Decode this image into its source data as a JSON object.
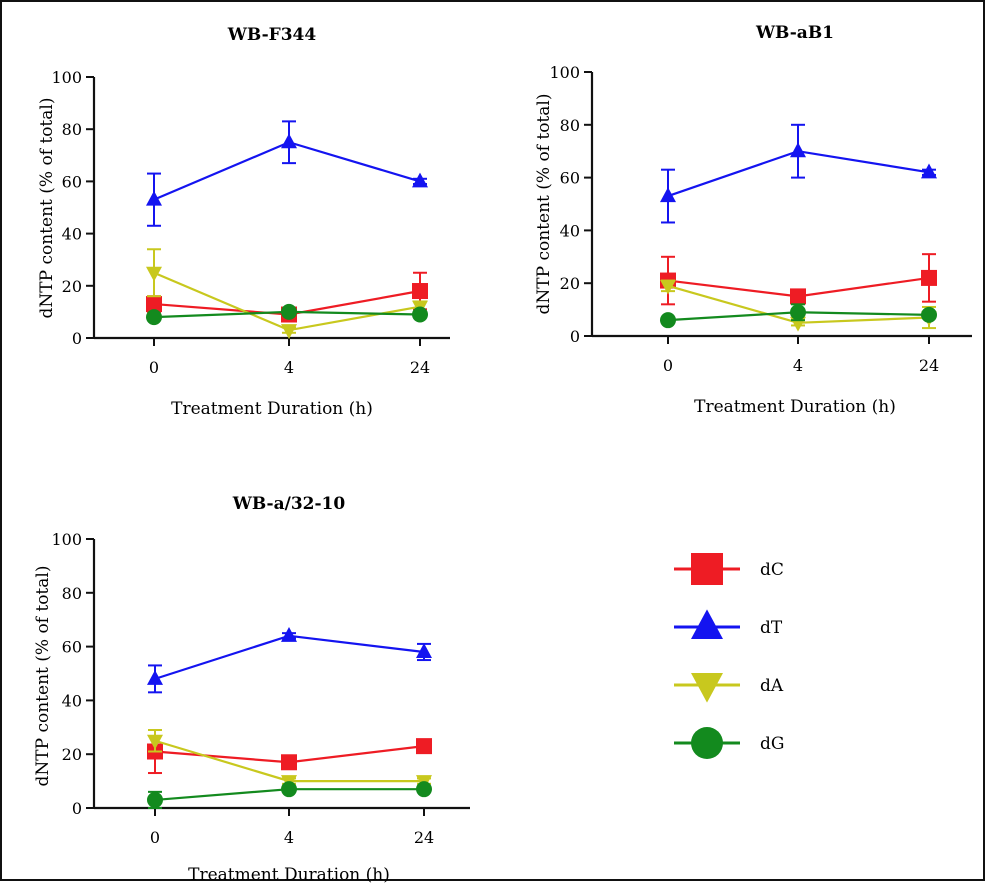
{
  "chart_data": [
    {
      "type": "line",
      "title": "WB-F344",
      "xlabel": "Treatment Duration (h)",
      "ylabel": "dNTP content (% of total)",
      "categories": [
        "0",
        "4",
        "24"
      ],
      "ylim": [
        0,
        100
      ],
      "yticks": [
        0,
        20,
        40,
        60,
        80,
        100
      ],
      "series": [
        {
          "name": "dC",
          "values": [
            13,
            9,
            18
          ],
          "err": [
            3,
            1,
            7
          ]
        },
        {
          "name": "dT",
          "values": [
            53,
            75,
            60
          ],
          "err": [
            10,
            8,
            1
          ]
        },
        {
          "name": "dA",
          "values": [
            25,
            3,
            12
          ],
          "err": [
            9,
            1,
            2
          ]
        },
        {
          "name": "dG",
          "values": [
            8,
            10,
            9
          ],
          "err": [
            1,
            1,
            1
          ]
        }
      ]
    },
    {
      "type": "line",
      "title": "WB-aB1",
      "xlabel": "Treatment Duration (h)",
      "ylabel": "dNTP content (% of total)",
      "categories": [
        "0",
        "4",
        "24"
      ],
      "ylim": [
        0,
        100
      ],
      "yticks": [
        0,
        20,
        40,
        60,
        80,
        100
      ],
      "series": [
        {
          "name": "dC",
          "values": [
            21,
            15,
            22
          ],
          "err": [
            9,
            1,
            9
          ]
        },
        {
          "name": "dT",
          "values": [
            53,
            70,
            62
          ],
          "err": [
            10,
            10,
            1
          ]
        },
        {
          "name": "dA",
          "values": [
            19,
            5,
            7
          ],
          "err": [
            2,
            1,
            4
          ]
        },
        {
          "name": "dG",
          "values": [
            6,
            9,
            8
          ],
          "err": [
            1,
            3,
            1
          ]
        }
      ]
    },
    {
      "type": "line",
      "title": "WB-a/32-10",
      "xlabel": "Treatment Duration (h)",
      "ylabel": "dNTP content (% of total)",
      "categories": [
        "0",
        "4",
        "24"
      ],
      "ylim": [
        0,
        100
      ],
      "yticks": [
        0,
        20,
        40,
        60,
        80,
        100
      ],
      "series": [
        {
          "name": "dC",
          "values": [
            21,
            17,
            23
          ],
          "err": [
            8,
            2,
            1
          ]
        },
        {
          "name": "dT",
          "values": [
            48,
            64,
            58
          ],
          "err": [
            5,
            1,
            3
          ]
        },
        {
          "name": "dA",
          "values": [
            25,
            10,
            10
          ],
          "err": [
            4,
            1,
            1
          ]
        },
        {
          "name": "dG",
          "values": [
            3,
            7,
            7
          ],
          "err": [
            3,
            1,
            1
          ]
        }
      ]
    }
  ],
  "legend": [
    {
      "name": "dC",
      "color": "#ee1c24",
      "marker": "square"
    },
    {
      "name": "dT",
      "color": "#1414f0",
      "marker": "triangle-up"
    },
    {
      "name": "dA",
      "color": "#c8c81e",
      "marker": "triangle-down"
    },
    {
      "name": "dG",
      "color": "#138a1e",
      "marker": "circle"
    }
  ],
  "colors": {
    "dC": "#ee1c24",
    "dT": "#1414f0",
    "dA": "#c8c81e",
    "dG": "#138a1e"
  }
}
